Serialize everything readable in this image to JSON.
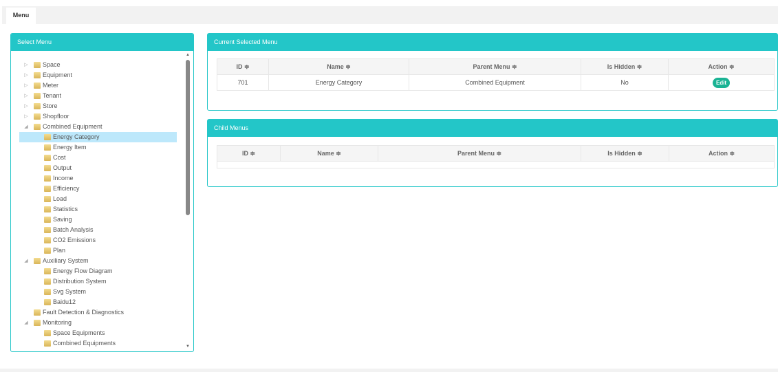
{
  "tabs": [
    {
      "label": "Menu"
    }
  ],
  "left_panel": {
    "title": "Select Menu",
    "tree": [
      {
        "label": "Space",
        "level": 0,
        "state": "collapsed"
      },
      {
        "label": "Equipment",
        "level": 0,
        "state": "collapsed"
      },
      {
        "label": "Meter",
        "level": 0,
        "state": "collapsed"
      },
      {
        "label": "Tenant",
        "level": 0,
        "state": "collapsed"
      },
      {
        "label": "Store",
        "level": 0,
        "state": "collapsed"
      },
      {
        "label": "Shopfloor",
        "level": 0,
        "state": "collapsed"
      },
      {
        "label": "Combined Equipment",
        "level": 0,
        "state": "expanded"
      },
      {
        "label": "Energy Category",
        "level": 1,
        "selected": true
      },
      {
        "label": "Energy Item",
        "level": 1
      },
      {
        "label": "Cost",
        "level": 1
      },
      {
        "label": "Output",
        "level": 1
      },
      {
        "label": "Income",
        "level": 1
      },
      {
        "label": "Efficiency",
        "level": 1
      },
      {
        "label": "Load",
        "level": 1
      },
      {
        "label": "Statistics",
        "level": 1
      },
      {
        "label": "Saving",
        "level": 1
      },
      {
        "label": "Batch Analysis",
        "level": 1
      },
      {
        "label": "CO2 Emissions",
        "level": 1
      },
      {
        "label": "Plan",
        "level": 1
      },
      {
        "label": "Auxiliary System",
        "level": 0,
        "state": "expanded"
      },
      {
        "label": "Energy Flow Diagram",
        "level": 1
      },
      {
        "label": "Distribution System",
        "level": 1
      },
      {
        "label": "Svg System",
        "level": 1
      },
      {
        "label": "Baidu12",
        "level": 1
      },
      {
        "label": "Fault Detection & Diagnostics",
        "level": 0
      },
      {
        "label": "Monitoring",
        "level": 0,
        "state": "expanded"
      },
      {
        "label": "Space Equipments",
        "level": 1
      },
      {
        "label": "Combined Equipments",
        "level": 1
      }
    ]
  },
  "current": {
    "title": "Current Selected Menu",
    "columns": [
      "ID ≑",
      "Name ≑",
      "Parent Menu ≑",
      "Is Hidden ≑",
      "Action ≑"
    ],
    "rows": [
      {
        "id": "701",
        "name": "Energy Category",
        "parent": "Combined Equipment",
        "hidden": "No",
        "action": "Edit"
      }
    ]
  },
  "child": {
    "title": "Child Menus",
    "columns": [
      "ID ≑",
      "Name ≑",
      "Parent Menu ≑",
      "Is Hidden ≑",
      "Action ≑"
    ],
    "rows": []
  },
  "colors": {
    "accent": "#23c6c8",
    "edit": "#1ab394",
    "selected": "#bde8fb"
  }
}
